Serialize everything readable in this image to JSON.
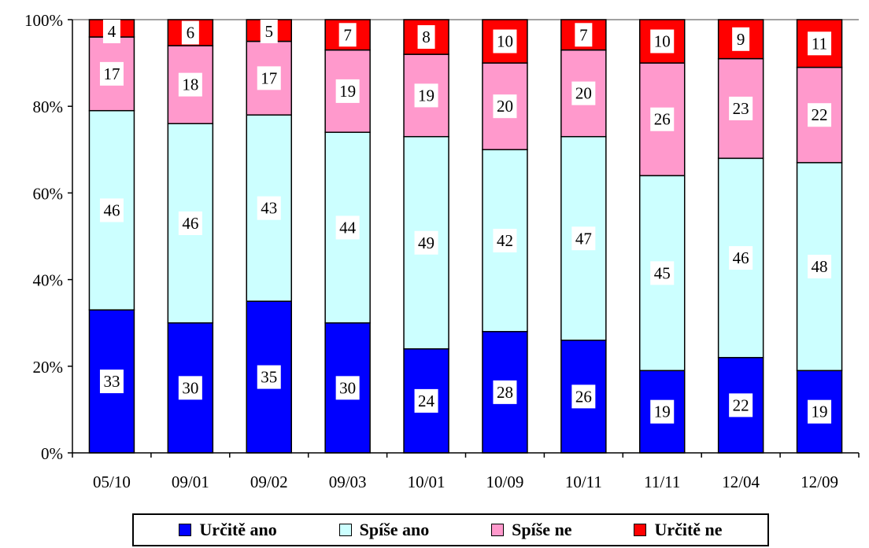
{
  "chart_data": {
    "type": "bar",
    "stacked": true,
    "percent": true,
    "categories": [
      "05/10",
      "09/01",
      "09/02",
      "09/03",
      "10/01",
      "10/09",
      "10/11",
      "11/11",
      "12/04",
      "12/09"
    ],
    "series": [
      {
        "name": "Určitě ano",
        "color": "#0000ff",
        "values": [
          33,
          30,
          35,
          30,
          24,
          28,
          26,
          19,
          22,
          19
        ]
      },
      {
        "name": "Spíše ano",
        "color": "#ccffff",
        "values": [
          46,
          46,
          43,
          44,
          49,
          42,
          47,
          45,
          46,
          48
        ]
      },
      {
        "name": "Spíše ne",
        "color": "#ff99cc",
        "values": [
          17,
          18,
          17,
          19,
          19,
          20,
          20,
          26,
          23,
          22
        ]
      },
      {
        "name": "Určitě ne",
        "color": "#ff0000",
        "values": [
          4,
          6,
          5,
          7,
          8,
          10,
          7,
          10,
          9,
          11
        ]
      }
    ],
    "ylim": [
      0,
      100
    ],
    "yticks": [
      "0%",
      "20%",
      "40%",
      "60%",
      "80%",
      "100%"
    ],
    "grid": false,
    "legend_position": "bottom"
  }
}
